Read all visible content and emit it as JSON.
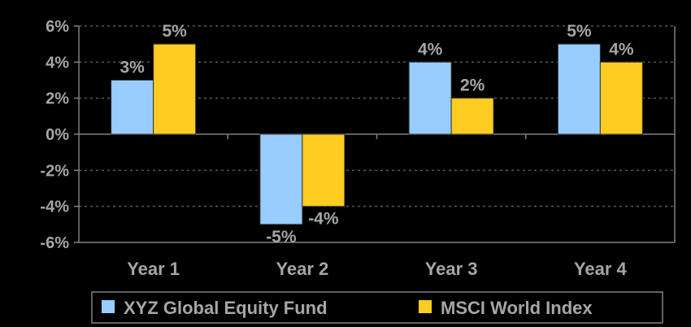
{
  "chart_data": {
    "type": "bar",
    "categories": [
      "Year 1",
      "Year 2",
      "Year 3",
      "Year 4"
    ],
    "series": [
      {
        "name": "XYZ Global Equity Fund",
        "values": [
          3,
          -5,
          4,
          5
        ],
        "labels": [
          "3%",
          "-5%",
          "4%",
          "5%"
        ],
        "color": "#99ccff"
      },
      {
        "name": "MSCI World Index",
        "values": [
          5,
          -4,
          2,
          4
        ],
        "labels": [
          "5%",
          "-4%",
          "2%",
          "4%"
        ],
        "color": "#ffcc22"
      }
    ],
    "ylim": [
      -6,
      6
    ],
    "yticks": [
      6,
      4,
      2,
      0,
      -2,
      -4,
      -6
    ],
    "ytick_labels": [
      "6%",
      "4%",
      "2%",
      "0%",
      "-2%",
      "-4%",
      "-6%"
    ],
    "grid": true,
    "legend": "bottom-right",
    "colors": {
      "background": "#000000",
      "text": "#a6a6a6",
      "axis": "#808080",
      "grid": "#595959"
    }
  }
}
